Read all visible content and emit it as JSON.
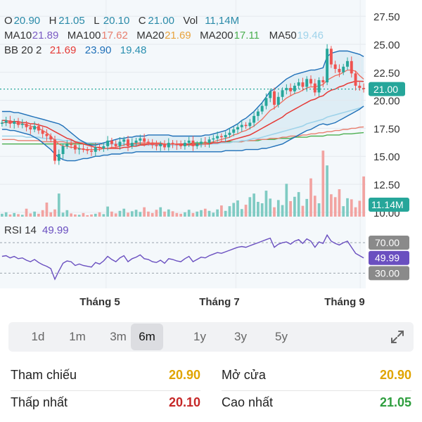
{
  "header": {
    "ohlc": [
      {
        "label": "O",
        "value": "20.90"
      },
      {
        "label": "H",
        "value": "21.05"
      },
      {
        "label": "L",
        "value": "20.10"
      },
      {
        "label": "C",
        "value": "21.00"
      },
      {
        "label": "Vol",
        "value": "11,14M"
      }
    ],
    "ma": [
      {
        "label": "MA10",
        "value": "21.89",
        "color": "#7b5cc4"
      },
      {
        "label": "MA100",
        "value": "17.62",
        "color": "#e87e6e"
      },
      {
        "label": "MA20",
        "value": "21.69",
        "color": "#e8a33c"
      },
      {
        "label": "MA200",
        "value": "17.11",
        "color": "#4caf50"
      },
      {
        "label": "MA50",
        "value": "19.46",
        "color": "#9fd3ea"
      }
    ],
    "bb": {
      "label": "BB 20 2",
      "values": [
        {
          "value": "21.69",
          "color": "#e53935"
        },
        {
          "value": "23.90",
          "color": "#1e6fb8"
        },
        {
          "value": "19.48",
          "color": "#2a8fb0"
        }
      ]
    },
    "rsi": {
      "label": "RSI 14",
      "value": "49.99",
      "color": "#6a4fc0"
    }
  },
  "colors": {
    "up": "#26a69a",
    "down": "#ef5350",
    "value_text": "#2a8aa8",
    "label_text": "#333333",
    "rsi": "#6a4fc0",
    "last_price_bg": "#26a69a"
  },
  "chart_data": {
    "type": "candlestick",
    "price_axis": {
      "ticks": [
        27.5,
        25.0,
        22.5,
        20.0,
        17.5,
        15.0,
        12.5,
        10.0
      ],
      "labels": [
        "27.50",
        "25.00",
        "22.50",
        "20.00",
        "17.50",
        "15.00",
        "12.50",
        "10.00"
      ],
      "range": [
        9.8,
        28.2
      ]
    },
    "last_price": {
      "value": 21.0,
      "label": "21.00"
    },
    "volume_label": "11.14M",
    "rsi_axis": {
      "ticks": [
        70,
        30
      ],
      "labels": [
        "70.00",
        "30.00"
      ],
      "last": 49.99,
      "last_label": "49.99"
    },
    "time_axis": [
      "Tháng 5",
      "Tháng 7",
      "Tháng 9"
    ],
    "close": [
      18.0,
      18.2,
      17.9,
      18.1,
      17.8,
      17.9,
      17.6,
      17.4,
      17.7,
      17.3,
      17.0,
      16.8,
      16.5,
      14.6,
      15.2,
      15.9,
      16.1,
      16.0,
      15.6,
      15.7,
      15.6,
      15.5,
      15.4,
      15.8,
      15.7,
      15.9,
      16.4,
      16.1,
      15.9,
      16.3,
      16.5,
      15.9,
      16.2,
      16.4,
      16.6,
      16.3,
      16.2,
      16.0,
      15.9,
      16.1,
      15.8,
      16.2,
      16.1,
      16.0,
      15.9,
      16.2,
      16.4,
      15.9,
      16.1,
      16.3,
      16.2,
      16.5,
      16.6,
      16.8,
      16.7,
      16.9,
      17.1,
      17.4,
      17.6,
      17.8,
      17.7,
      18.0,
      18.6,
      19.0,
      19.5,
      20.2,
      20.8,
      19.6,
      20.3,
      20.9,
      21.1,
      20.8,
      21.3,
      21.6,
      21.2,
      21.9,
      21.5,
      20.7,
      21.8,
      21.6,
      24.6,
      23.2,
      22.8,
      22.5,
      23.0,
      23.5,
      22.4,
      21.3,
      21.1,
      21.0
    ],
    "volume": [
      0.8,
      1.2,
      0.6,
      1.0,
      0.7,
      0.5,
      2.2,
      0.9,
      1.4,
      0.8,
      1.8,
      3.9,
      1.2,
      2.0,
      6.4,
      1.1,
      1.8,
      0.9,
      0.6,
      0.5,
      1.0,
      0.4,
      0.6,
      0.8,
      1.2,
      0.7,
      2.8,
      1.4,
      0.9,
      1.6,
      2.2,
      1.1,
      1.5,
      1.9,
      1.3,
      2.6,
      1.4,
      1.0,
      1.9,
      2.6,
      1.4,
      2.0,
      1.5,
      1.0,
      0.8,
      1.2,
      1.9,
      1.0,
      1.4,
      1.8,
      2.2,
      1.6,
      1.1,
      2.0,
      3.1,
      1.6,
      2.9,
      3.8,
      4.5,
      2.1,
      3.3,
      5.4,
      6.4,
      4.1,
      3.7,
      7.2,
      5.0,
      2.6,
      4.6,
      3.2,
      9.1,
      4.3,
      5.5,
      6.8,
      3.0,
      4.9,
      10.6,
      5.8,
      3.7,
      18.3,
      14.2,
      6.2,
      5.4,
      7.6,
      2.9,
      5.1,
      4.8,
      2.6,
      4.4,
      11.14
    ],
    "ma": {
      "MA10": [
        18.0,
        18.0,
        18.0,
        18.0,
        17.9,
        17.9,
        17.8,
        17.7,
        17.6,
        17.5,
        17.3,
        17.1,
        16.8,
        16.4,
        16.1,
        15.9,
        15.9,
        15.8,
        15.8,
        15.7,
        15.6,
        15.6,
        15.6,
        15.6,
        15.6,
        15.7,
        15.7,
        15.8,
        15.8,
        15.9,
        16.0,
        16.1,
        16.1,
        16.2,
        16.2,
        16.2,
        16.2,
        16.2,
        16.2,
        16.2,
        16.1,
        16.1,
        16.1,
        16.1,
        16.0,
        16.0,
        16.0,
        16.0,
        16.0,
        16.1,
        16.1,
        16.2,
        16.3,
        16.4,
        16.5,
        16.6,
        16.7,
        16.9,
        17.0,
        17.2,
        17.3,
        17.5,
        17.7,
        18.0,
        18.3,
        18.7,
        19.1,
        19.3,
        19.6,
        19.9,
        20.2,
        20.4,
        20.6,
        20.7,
        20.9,
        21.1,
        21.2,
        21.2,
        21.3,
        21.4,
        21.8,
        22.0,
        22.2,
        22.3,
        22.5,
        22.7,
        22.7,
        22.6,
        22.2,
        21.89
      ],
      "MA20": [
        18.2,
        18.2,
        18.1,
        18.1,
        18.1,
        18.0,
        18.0,
        17.9,
        17.9,
        17.8,
        17.7,
        17.6,
        17.4,
        17.2,
        17.0,
        16.8,
        16.6,
        16.5,
        16.3,
        16.2,
        16.1,
        16.0,
        15.9,
        15.8,
        15.8,
        15.7,
        15.7,
        15.7,
        15.7,
        15.7,
        15.8,
        15.8,
        15.9,
        15.9,
        16.0,
        16.0,
        16.1,
        16.1,
        16.1,
        16.1,
        16.1,
        16.1,
        16.1,
        16.1,
        16.1,
        16.1,
        16.1,
        16.1,
        16.1,
        16.1,
        16.1,
        16.1,
        16.2,
        16.2,
        16.3,
        16.3,
        16.4,
        16.5,
        16.6,
        16.7,
        16.8,
        16.9,
        17.1,
        17.3,
        17.5,
        17.7,
        17.9,
        18.1,
        18.3,
        18.5,
        18.8,
        19.0,
        19.2,
        19.4,
        19.6,
        19.8,
        20.0,
        20.1,
        20.3,
        20.4,
        20.7,
        20.9,
        21.0,
        21.2,
        21.3,
        21.5,
        21.6,
        21.7,
        21.7,
        21.69
      ],
      "MA50": [
        16.8,
        16.8,
        16.8,
        16.8,
        16.8,
        16.8,
        16.7,
        16.7,
        16.7,
        16.7,
        16.6,
        16.6,
        16.6,
        16.5,
        16.5,
        16.4,
        16.4,
        16.4,
        16.3,
        16.3,
        16.3,
        16.2,
        16.2,
        16.2,
        16.2,
        16.1,
        16.1,
        16.1,
        16.1,
        16.1,
        16.1,
        16.0,
        16.0,
        16.0,
        16.0,
        16.0,
        16.0,
        16.0,
        16.0,
        16.0,
        16.0,
        16.0,
        16.0,
        16.0,
        16.0,
        16.0,
        16.0,
        16.0,
        16.0,
        16.0,
        16.1,
        16.1,
        16.1,
        16.1,
        16.2,
        16.2,
        16.2,
        16.3,
        16.3,
        16.4,
        16.4,
        16.5,
        16.6,
        16.6,
        16.7,
        16.8,
        16.9,
        17.0,
        17.1,
        17.2,
        17.3,
        17.4,
        17.5,
        17.6,
        17.7,
        17.9,
        18.0,
        18.1,
        18.2,
        18.3,
        18.5,
        18.6,
        18.7,
        18.8,
        18.9,
        19.0,
        19.1,
        19.2,
        19.3,
        19.46
      ],
      "MA100": [
        16.5,
        16.5,
        16.5,
        16.5,
        16.4,
        16.4,
        16.4,
        16.4,
        16.4,
        16.4,
        16.3,
        16.3,
        16.3,
        16.3,
        16.3,
        16.3,
        16.2,
        16.2,
        16.2,
        16.2,
        16.2,
        16.2,
        16.2,
        16.1,
        16.1,
        16.1,
        16.1,
        16.1,
        16.1,
        16.1,
        16.1,
        16.1,
        16.1,
        16.1,
        16.1,
        16.1,
        16.1,
        16.1,
        16.1,
        16.1,
        16.1,
        16.1,
        16.1,
        16.1,
        16.1,
        16.1,
        16.1,
        16.1,
        16.1,
        16.1,
        16.1,
        16.1,
        16.2,
        16.2,
        16.2,
        16.2,
        16.2,
        16.3,
        16.3,
        16.3,
        16.4,
        16.4,
        16.4,
        16.5,
        16.5,
        16.5,
        16.6,
        16.6,
        16.6,
        16.7,
        16.7,
        16.8,
        16.8,
        16.8,
        16.9,
        16.9,
        17.0,
        17.0,
        17.1,
        17.1,
        17.2,
        17.2,
        17.3,
        17.3,
        17.4,
        17.4,
        17.5,
        17.5,
        17.6,
        17.62
      ],
      "MA200": [
        16.1,
        16.1,
        16.1,
        16.1,
        16.1,
        16.1,
        16.1,
        16.1,
        16.1,
        16.1,
        16.1,
        16.1,
        16.1,
        16.1,
        16.1,
        16.1,
        16.1,
        16.1,
        16.1,
        16.1,
        16.1,
        16.1,
        16.1,
        16.1,
        16.1,
        16.1,
        16.1,
        16.1,
        16.1,
        16.1,
        16.1,
        16.1,
        16.1,
        16.1,
        16.1,
        16.1,
        16.1,
        16.1,
        16.1,
        16.1,
        16.1,
        16.1,
        16.1,
        16.1,
        16.1,
        16.1,
        16.1,
        16.2,
        16.2,
        16.2,
        16.2,
        16.2,
        16.2,
        16.2,
        16.2,
        16.3,
        16.3,
        16.3,
        16.3,
        16.3,
        16.4,
        16.4,
        16.4,
        16.4,
        16.5,
        16.5,
        16.5,
        16.5,
        16.6,
        16.6,
        16.6,
        16.6,
        16.7,
        16.7,
        16.7,
        16.7,
        16.8,
        16.8,
        16.8,
        16.8,
        16.9,
        16.9,
        16.9,
        16.9,
        17.0,
        17.0,
        17.0,
        17.05,
        17.08,
        17.11
      ]
    },
    "bb": {
      "upper": [
        19.0,
        19.0,
        19.0,
        18.9,
        18.9,
        18.8,
        18.7,
        18.6,
        18.5,
        18.4,
        18.3,
        18.2,
        18.1,
        18.0,
        17.9,
        17.7,
        17.4,
        17.1,
        16.8,
        16.5,
        16.3,
        16.1,
        16.0,
        16.0,
        16.1,
        16.2,
        16.3,
        16.4,
        16.5,
        16.6,
        16.6,
        16.7,
        16.7,
        16.8,
        16.8,
        16.8,
        16.9,
        16.9,
        16.9,
        16.9,
        16.9,
        16.9,
        16.8,
        16.8,
        16.8,
        16.8,
        16.8,
        16.8,
        16.8,
        16.8,
        16.9,
        16.9,
        17.0,
        17.1,
        17.2,
        17.3,
        17.5,
        17.7,
        17.9,
        18.2,
        18.4,
        18.7,
        19.0,
        19.4,
        19.8,
        20.3,
        20.8,
        21.0,
        21.3,
        21.6,
        21.9,
        22.1,
        22.3,
        22.4,
        22.5,
        22.6,
        22.7,
        22.7,
        22.8,
        22.9,
        23.9,
        24.2,
        24.3,
        24.4,
        24.4,
        24.4,
        24.3,
        24.2,
        24.1,
        23.9
      ],
      "lower": [
        17.4,
        17.4,
        17.3,
        17.3,
        17.2,
        17.1,
        17.0,
        16.9,
        16.7,
        16.5,
        16.2,
        15.9,
        15.6,
        15.2,
        14.9,
        14.7,
        14.6,
        14.6,
        14.6,
        14.7,
        14.8,
        14.8,
        14.9,
        15.0,
        15.0,
        15.1,
        15.1,
        15.2,
        15.2,
        15.2,
        15.3,
        15.3,
        15.3,
        15.4,
        15.4,
        15.4,
        15.4,
        15.4,
        15.4,
        15.4,
        15.4,
        15.4,
        15.4,
        15.4,
        15.4,
        15.4,
        15.4,
        15.4,
        15.4,
        15.4,
        15.4,
        15.4,
        15.4,
        15.4,
        15.4,
        15.5,
        15.5,
        15.5,
        15.5,
        15.5,
        15.6,
        15.6,
        15.6,
        15.6,
        15.7,
        15.7,
        15.8,
        15.9,
        16.0,
        16.1,
        16.3,
        16.5,
        16.7,
        16.9,
        17.1,
        17.3,
        17.4,
        17.6,
        17.8,
        17.9,
        17.8,
        17.9,
        18.0,
        18.2,
        18.4,
        18.6,
        18.8,
        19.0,
        19.2,
        19.48
      ]
    },
    "rsi": [
      52,
      53,
      50,
      52,
      49,
      50,
      47,
      45,
      48,
      44,
      41,
      39,
      36,
      22,
      33,
      43,
      46,
      45,
      40,
      42,
      40,
      39,
      38,
      44,
      42,
      46,
      52,
      48,
      45,
      50,
      53,
      45,
      49,
      51,
      54,
      49,
      48,
      45,
      44,
      47,
      43,
      49,
      48,
      46,
      45,
      49,
      52,
      45,
      48,
      51,
      50,
      53,
      55,
      57,
      56,
      58,
      60,
      62,
      64,
      65,
      64,
      66,
      68,
      70,
      72,
      74,
      76,
      64,
      68,
      70,
      71,
      68,
      72,
      74,
      69,
      75,
      72,
      64,
      71,
      69,
      80,
      72,
      69,
      67,
      70,
      72,
      64,
      56,
      53,
      49.99
    ]
  },
  "timeframes": {
    "items": [
      "1d",
      "1m",
      "3m",
      "6m",
      "1y",
      "3y",
      "5y"
    ],
    "active": "6m"
  },
  "stats": {
    "ref_label": "Tham chiếu",
    "ref_value": "20.90",
    "open_label": "Mở cửa",
    "open_value": "20.90",
    "low_label": "Thấp nhất",
    "low_value": "20.10",
    "high_label": "Cao nhất",
    "high_value": "21.05"
  }
}
